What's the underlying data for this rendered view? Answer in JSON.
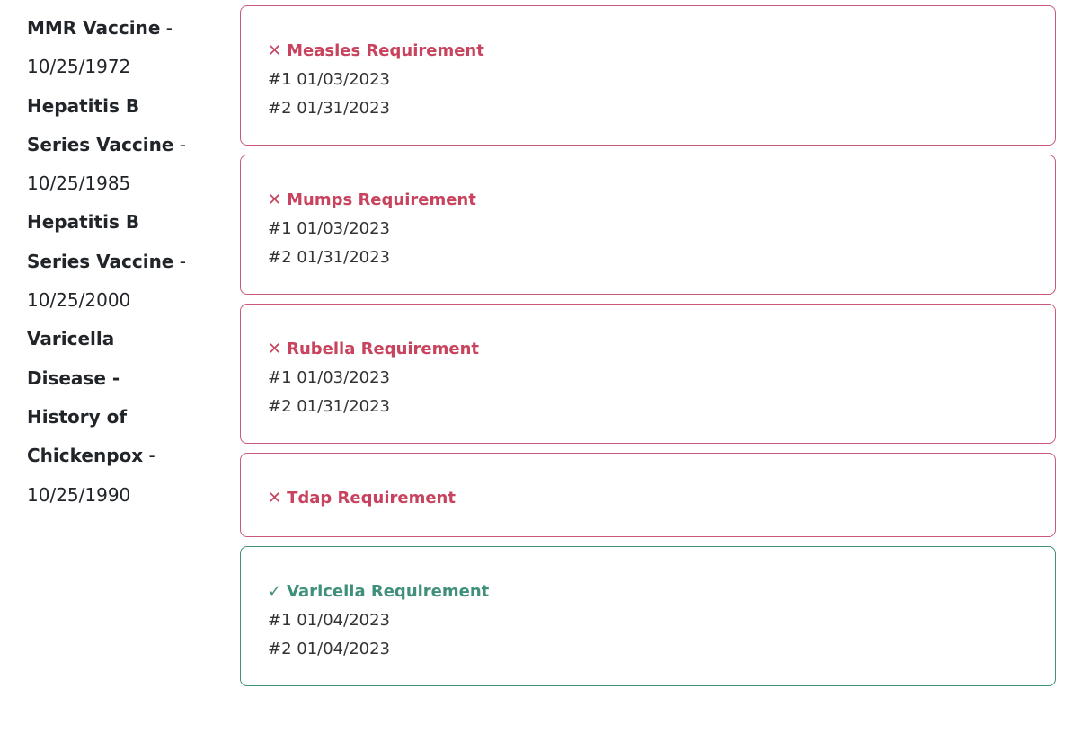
{
  "history": [
    {
      "name_lines": [
        "MMR Vaccine"
      ],
      "date": "10/25/1972"
    },
    {
      "name_lines": [
        "Hepatitis B",
        "Series Vaccine"
      ],
      "date": "10/25/1985"
    },
    {
      "name_lines": [
        "Hepatitis B",
        "Series Vaccine"
      ],
      "date": "10/25/2000"
    },
    {
      "name_lines": [
        "Varicella",
        "Disease -",
        "History of",
        "Chickenpox"
      ],
      "date": "10/25/1990"
    }
  ],
  "separator": " -",
  "requirements": [
    {
      "status": "unmet",
      "icon": "x-icon",
      "symbol": "✕",
      "title": "Measles Requirement",
      "doses": [
        "#1 01/03/2023",
        "#2 01/31/2023"
      ]
    },
    {
      "status": "unmet",
      "icon": "x-icon",
      "symbol": "✕",
      "title": "Mumps Requirement",
      "doses": [
        "#1 01/03/2023",
        "#2 01/31/2023"
      ]
    },
    {
      "status": "unmet",
      "icon": "x-icon",
      "symbol": "✕",
      "title": "Rubella Requirement",
      "doses": [
        "#1 01/03/2023",
        "#2 01/31/2023"
      ]
    },
    {
      "status": "unmet",
      "icon": "x-icon",
      "symbol": "✕",
      "title": "Tdap Requirement",
      "doses": []
    },
    {
      "status": "met",
      "icon": "check-icon",
      "symbol": "✓",
      "title": "Varicella Requirement",
      "doses": [
        "#1 01/04/2023",
        "#2 01/04/2023"
      ]
    }
  ],
  "colors": {
    "unmet": "#c8435e",
    "met": "#3f8f7a"
  }
}
